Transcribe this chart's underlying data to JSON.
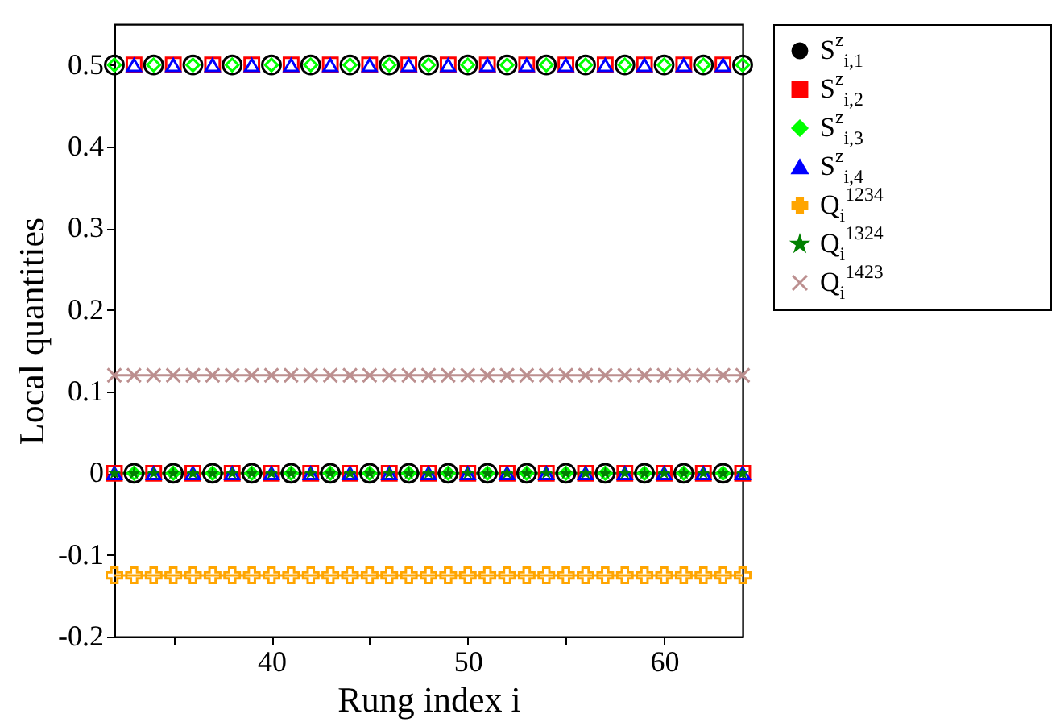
{
  "chart_data": {
    "type": "scatter",
    "xlabel": "Rung index i",
    "ylabel": "Local quantities",
    "x": [
      32,
      33,
      34,
      35,
      36,
      37,
      38,
      39,
      40,
      41,
      42,
      43,
      44,
      45,
      46,
      47,
      48,
      49,
      50,
      51,
      52,
      53,
      54,
      55,
      56,
      57,
      58,
      59,
      60,
      61,
      62,
      63,
      64
    ],
    "xlim": [
      32,
      64
    ],
    "xticks": [
      {
        "value": 35,
        "label": null
      },
      40,
      {
        "value": 45,
        "label": null
      },
      50,
      {
        "value": 55,
        "label": null
      },
      60
    ],
    "ylim": [
      -0.2,
      0.55
    ],
    "yticks": [
      -0.2,
      -0.1,
      0,
      0.1,
      0.2,
      0.3,
      0.4,
      0.5
    ],
    "grid": false,
    "legend": "right",
    "series": [
      {
        "name": "S$^{z}$$_{i,1}$",
        "type": "scatter",
        "marker": "circle",
        "color": "#000000",
        "values": [
          0.5,
          0,
          0.5,
          0,
          0.5,
          0,
          0.5,
          0,
          0.5,
          0,
          0.5,
          0,
          0.5,
          0,
          0.5,
          0,
          0.5,
          0,
          0.5,
          0,
          0.5,
          0,
          0.5,
          0,
          0.5,
          0,
          0.5,
          0,
          0.5,
          0,
          0.5,
          0,
          0.5
        ]
      },
      {
        "name": "S$^{z}$$_{i,2}$",
        "type": "scatter",
        "marker": "square",
        "color": "#ff0000",
        "values": [
          0,
          0.5,
          0,
          0.5,
          0,
          0.5,
          0,
          0.5,
          0,
          0.5,
          0,
          0.5,
          0,
          0.5,
          0,
          0.5,
          0,
          0.5,
          0,
          0.5,
          0,
          0.5,
          0,
          0.5,
          0,
          0.5,
          0,
          0.5,
          0,
          0.5,
          0,
          0.5,
          0
        ]
      },
      {
        "name": "S$^{z}$$_{i,3}$",
        "type": "scatter",
        "marker": "diamond",
        "color": "#00ff00",
        "values": [
          0.5,
          0,
          0.5,
          0,
          0.5,
          0,
          0.5,
          0,
          0.5,
          0,
          0.5,
          0,
          0.5,
          0,
          0.5,
          0,
          0.5,
          0,
          0.5,
          0,
          0.5,
          0,
          0.5,
          0,
          0.5,
          0,
          0.5,
          0,
          0.5,
          0,
          0.5,
          0,
          0.5
        ]
      },
      {
        "name": "S$^{z}$$_{i,4}$",
        "type": "scatter",
        "marker": "triangle",
        "color": "#0000ff",
        "values": [
          0,
          0.5,
          0,
          0.5,
          0,
          0.5,
          0,
          0.5,
          0,
          0.5,
          0,
          0.5,
          0,
          0.5,
          0,
          0.5,
          0,
          0.5,
          0,
          0.5,
          0,
          0.5,
          0,
          0.5,
          0,
          0.5,
          0,
          0.5,
          0,
          0.5,
          0,
          0.5,
          0
        ]
      },
      {
        "name": "Q$_{i}$$^{1234}$",
        "type": "line",
        "marker": "cross",
        "color": "#ffa500",
        "values": [
          -0.125,
          -0.125,
          -0.125,
          -0.125,
          -0.125,
          -0.125,
          -0.125,
          -0.125,
          -0.125,
          -0.125,
          -0.125,
          -0.125,
          -0.125,
          -0.125,
          -0.125,
          -0.125,
          -0.125,
          -0.125,
          -0.125,
          -0.125,
          -0.125,
          -0.125,
          -0.125,
          -0.125,
          -0.125,
          -0.125,
          -0.125,
          -0.125,
          -0.125,
          -0.125,
          -0.125,
          -0.125,
          -0.125
        ]
      },
      {
        "name": "Q$_{i}$$^{1324}$",
        "type": "line",
        "marker": "star",
        "color": "#008000",
        "values": [
          0,
          0,
          0,
          0,
          0,
          0,
          0,
          0,
          0,
          0,
          0,
          0,
          0,
          0,
          0,
          0,
          0,
          0,
          0,
          0,
          0,
          0,
          0,
          0,
          0,
          0,
          0,
          0,
          0,
          0,
          0,
          0,
          0
        ]
      },
      {
        "name": "Q$_{i}$$^{1423}$",
        "type": "line",
        "marker": "x",
        "color": "#bc8f8f",
        "values": [
          0.12,
          0.12,
          0.12,
          0.12,
          0.12,
          0.12,
          0.12,
          0.12,
          0.12,
          0.12,
          0.12,
          0.12,
          0.12,
          0.12,
          0.12,
          0.12,
          0.12,
          0.12,
          0.12,
          0.12,
          0.12,
          0.12,
          0.12,
          0.12,
          0.12,
          0.12,
          0.12,
          0.12,
          0.12,
          0.12,
          0.12,
          0.12,
          0.12
        ]
      }
    ]
  }
}
